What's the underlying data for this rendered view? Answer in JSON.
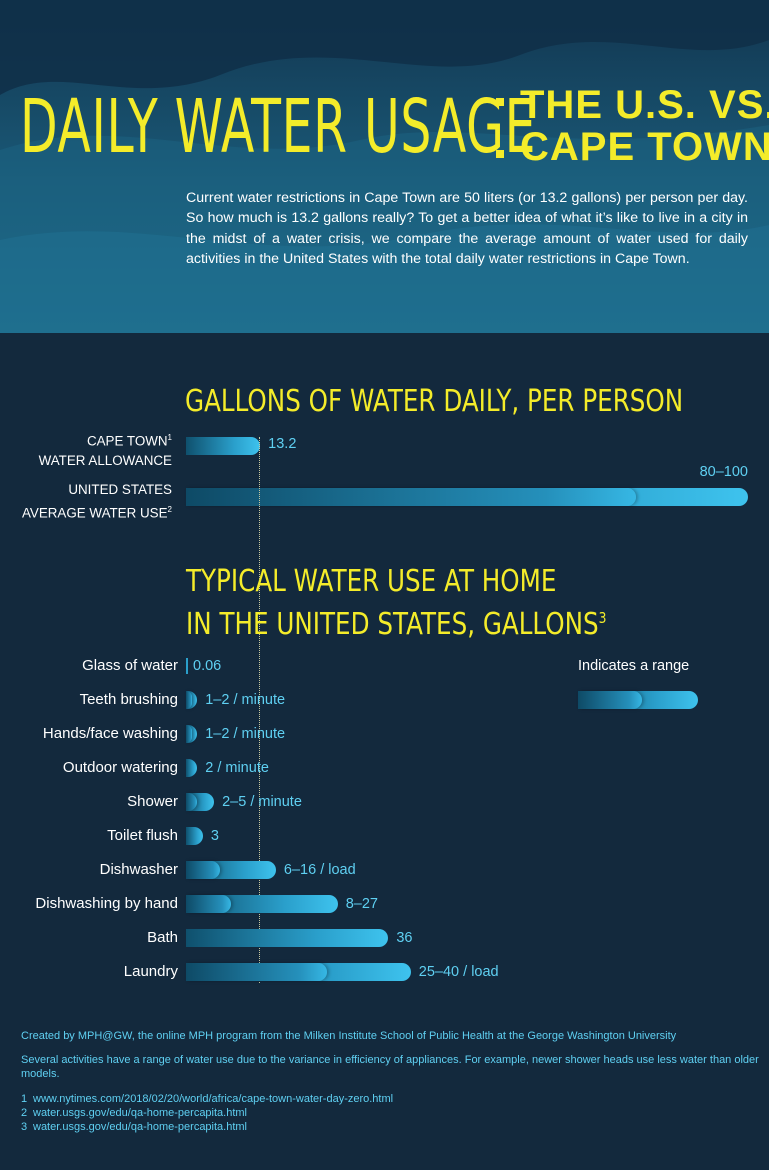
{
  "title": {
    "left": "DAILY WATER USAGE",
    "right_line1": "THE U.S. VS.",
    "right_line2": "CAPE TOWN"
  },
  "intro": "Current water restrictions in Cape Town are 50 liters (or 13.2 gallons) per person per day. So how much is 13.2 gallons really? To get a better idea of what it’s like to live in a city in the midst of a water crisis, we compare the average amount of water used for daily activities in the United States with the total daily water restrictions in Cape Town.",
  "colors": {
    "accent": "#f4ec2a",
    "value": "#5fd0f2",
    "bar_dark": "#0f506d",
    "bar_light": "#3ec3ee",
    "background": "#13293d"
  },
  "chart_data": [
    {
      "type": "bar",
      "orientation": "horizontal",
      "title": "GALLONS OF WATER DAILY, PER PERSON",
      "categories": [
        {
          "line1": "CAPE TOWN",
          "sup": "1",
          "line2": "WATER ALLOWANCE"
        },
        {
          "line1": "UNITED STATES",
          "line2": "AVERAGE WATER USE",
          "sup": "2"
        }
      ],
      "series": [
        {
          "values": [
            13.2,
            80
          ],
          "max_values": [
            13.2,
            100
          ]
        }
      ],
      "value_labels": [
        "13.2",
        "80–100"
      ],
      "xlim": [
        0,
        100
      ],
      "grid": false,
      "reference_line": 13.2
    },
    {
      "type": "bar",
      "orientation": "horizontal",
      "title_line1": "TYPICAL WATER USE AT HOME",
      "title_line2": "IN THE UNITED STATES, GALLONS",
      "title_sup": "3",
      "categories": [
        "Glass of water",
        "Teeth brushing",
        "Hands/face washing",
        "Outdoor watering",
        "Shower",
        "Toilet flush",
        "Dishwasher",
        "Dishwashing by hand",
        "Bath",
        "Laundry"
      ],
      "min_values": [
        0.06,
        1,
        1,
        2,
        2,
        3,
        6,
        8,
        36,
        25
      ],
      "max_values": [
        0.06,
        2,
        2,
        2,
        5,
        3,
        16,
        27,
        36,
        40
      ],
      "value_labels": [
        "0.06",
        "1–2 / minute",
        "1–2 / minute",
        "2 / minute",
        "2–5 / minute",
        "3",
        "6–16 / load",
        "8–27",
        "36",
        "25–40 / load"
      ],
      "xlim": [
        0,
        100
      ],
      "grid": false,
      "reference_line": 13.2,
      "legend": {
        "text": "Indicates a range",
        "placement": "right"
      }
    }
  ],
  "footer": {
    "credit": "Created by MPH@GW, the online MPH program from the Milken Institute School of Public Health at the George Washington University",
    "note": "Several activities have a range of water use due to the variance in efficiency of appliances. For example, newer shower heads use less water than older models.",
    "sources": [
      {
        "num": "1",
        "text": "www.nytimes.com/2018/02/20/world/africa/cape-town-water-day-zero.html"
      },
      {
        "num": "2",
        "text": "water.usgs.gov/edu/qa-home-percapita.html"
      },
      {
        "num": "3",
        "text": "water.usgs.gov/edu/qa-home-percapita.html"
      }
    ]
  }
}
